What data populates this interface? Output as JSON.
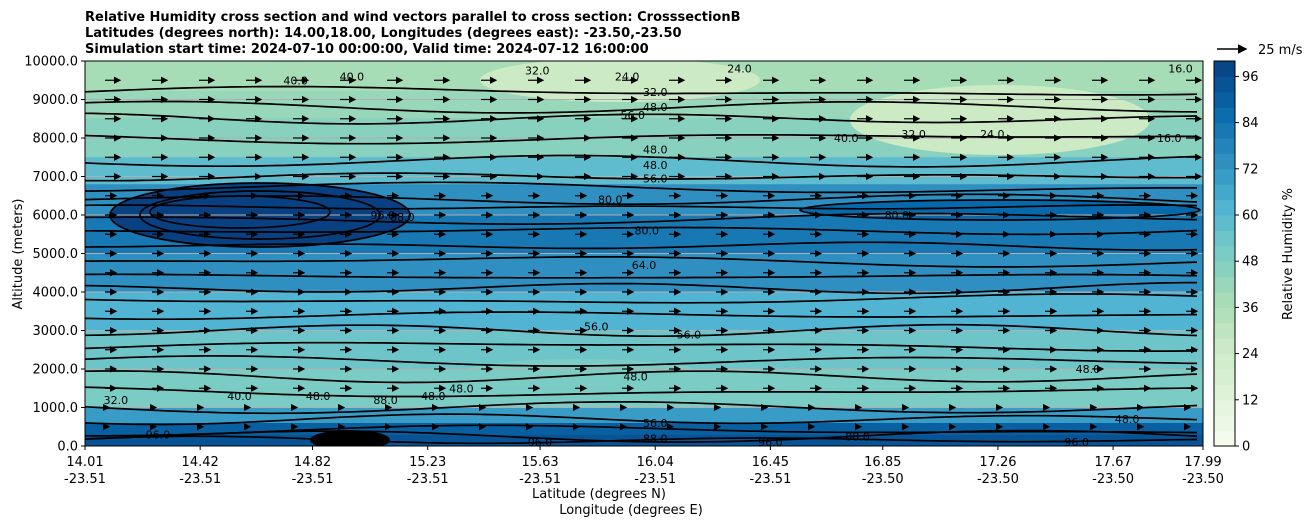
{
  "chart_data": {
    "type": "contour",
    "title": [
      "Relative Humidity cross section and wind vectors parallel to cross section: CrosssectionB",
      "Latitudes (degrees north): 14.00,18.00, Longitudes (degrees east): -23.50,-23.50",
      "Simulation start time: 2024-07-10 00:00:00, Valid time: 2024-07-12 16:00:00"
    ],
    "xlabel": "Latitude (degrees N)",
    "xlabel2": "Longitude (degrees E)",
    "ylabel": "Altitude (meters)",
    "ylim": [
      0,
      10000
    ],
    "xlim": [
      14.01,
      17.99
    ],
    "x_ticks": [
      {
        "lat": "14.01",
        "lon": "-23.51"
      },
      {
        "lat": "14.42",
        "lon": "-23.51"
      },
      {
        "lat": "14.82",
        "lon": "-23.51"
      },
      {
        "lat": "15.23",
        "lon": "-23.51"
      },
      {
        "lat": "15.63",
        "lon": "-23.51"
      },
      {
        "lat": "16.04",
        "lon": "-23.51"
      },
      {
        "lat": "16.45",
        "lon": "-23.51"
      },
      {
        "lat": "16.85",
        "lon": "-23.50"
      },
      {
        "lat": "17.26",
        "lon": "-23.50"
      },
      {
        "lat": "17.67",
        "lon": "-23.50"
      },
      {
        "lat": "17.99",
        "lon": "-23.50"
      }
    ],
    "y_ticks": [
      0,
      1000,
      2000,
      3000,
      4000,
      5000,
      6000,
      7000,
      8000,
      9000,
      10000
    ],
    "y_tick_labels": [
      "0.0",
      "1000.0",
      "2000.0",
      "3000.0",
      "4000.0",
      "5000.0",
      "6000.0",
      "7000.0",
      "8000.0",
      "9000.0",
      "10000.0"
    ],
    "grid": "horizontal",
    "colorbar": {
      "label": "Relative Humidity %",
      "min": 0,
      "max": 100,
      "levels": 25,
      "ticks": [
        0,
        12,
        24,
        36,
        48,
        60,
        72,
        84,
        96
      ],
      "tick_labels": [
        "0",
        "12",
        "24",
        "36",
        "48",
        "60",
        "72",
        "84",
        "96"
      ],
      "cmap": "GnBu",
      "colors": [
        "#f7fcf0",
        "#e0f3db",
        "#ccebc5",
        "#a8ddb5",
        "#7bccc4",
        "#4eb3d3",
        "#2b8cbe",
        "#0868ac",
        "#084081"
      ]
    },
    "quiver_key": {
      "label": "25 m/s",
      "value": 25
    },
    "humidity_profile": {
      "altitudes": [
        0,
        300,
        600,
        1000,
        1500,
        2000,
        3000,
        4000,
        5000,
        6000,
        6800,
        7500,
        8500,
        9200,
        10000
      ],
      "rh": [
        96,
        94,
        88,
        55,
        47,
        50,
        58,
        66,
        78,
        82,
        66,
        50,
        42,
        38,
        36
      ]
    },
    "contour_labels": [
      {
        "text": "32.0",
        "lat": 15.62,
        "alt": 9750
      },
      {
        "text": "32.0",
        "lat": 16.04,
        "alt": 9200
      },
      {
        "text": "48.0",
        "lat": 16.04,
        "alt": 8800
      },
      {
        "text": "56.0",
        "lat": 15.96,
        "alt": 8600
      },
      {
        "text": "48.0",
        "lat": 16.04,
        "alt": 7700
      },
      {
        "text": "48.0",
        "lat": 16.04,
        "alt": 7300
      },
      {
        "text": "56.0",
        "lat": 16.04,
        "alt": 6950
      },
      {
        "text": "80.0",
        "lat": 15.88,
        "alt": 6400
      },
      {
        "text": "80.0",
        "lat": 16.01,
        "alt": 5600
      },
      {
        "text": "64.0",
        "lat": 16.0,
        "alt": 4700
      },
      {
        "text": "56.0",
        "lat": 15.83,
        "alt": 3100
      },
      {
        "text": "56.0",
        "lat": 16.16,
        "alt": 2900
      },
      {
        "text": "48.0",
        "lat": 15.97,
        "alt": 1800
      },
      {
        "text": "48.0",
        "lat": 17.58,
        "alt": 2000
      },
      {
        "text": "24.0",
        "lat": 17.24,
        "alt": 8100
      },
      {
        "text": "32.0",
        "lat": 16.96,
        "alt": 8100
      },
      {
        "text": "40.0",
        "lat": 16.72,
        "alt": 8000
      },
      {
        "text": "16.0",
        "lat": 17.87,
        "alt": 8000
      },
      {
        "text": "40.0",
        "lat": 14.76,
        "alt": 9500
      },
      {
        "text": "40.0",
        "lat": 14.96,
        "alt": 9600
      },
      {
        "text": "88.0",
        "lat": 15.14,
        "alt": 5950
      },
      {
        "text": "96.0",
        "lat": 15.07,
        "alt": 6000
      },
      {
        "text": "80.0",
        "lat": 16.9,
        "alt": 6000
      },
      {
        "text": "40.0",
        "lat": 14.56,
        "alt": 1300
      },
      {
        "text": "48.0",
        "lat": 14.84,
        "alt": 1300
      },
      {
        "text": "32.0",
        "lat": 14.12,
        "alt": 1200
      },
      {
        "text": "96.0",
        "lat": 14.27,
        "alt": 300
      },
      {
        "text": "48.0",
        "lat": 15.25,
        "alt": 1300
      },
      {
        "text": "48.0",
        "lat": 15.35,
        "alt": 1500
      },
      {
        "text": "88.0",
        "lat": 15.08,
        "alt": 1200
      },
      {
        "text": "56.0",
        "lat": 16.04,
        "alt": 600
      },
      {
        "text": "88.0",
        "lat": 16.04,
        "alt": 200
      },
      {
        "text": "96.0",
        "lat": 15.63,
        "alt": 100
      },
      {
        "text": "96.0",
        "lat": 16.45,
        "alt": 100
      },
      {
        "text": "88.0",
        "lat": 16.76,
        "alt": 250
      },
      {
        "text": "96.0",
        "lat": 17.54,
        "alt": 100
      },
      {
        "text": "48.0",
        "lat": 17.72,
        "alt": 700
      },
      {
        "text": "16.0",
        "lat": 17.91,
        "alt": 9800
      },
      {
        "text": "24.0",
        "lat": 15.94,
        "alt": 9600
      },
      {
        "text": "24.0",
        "lat": 16.34,
        "alt": 9800
      }
    ]
  }
}
